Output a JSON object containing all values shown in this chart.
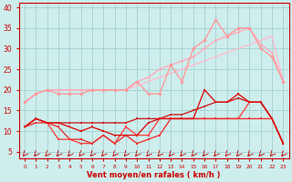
{
  "x": [
    0,
    1,
    2,
    3,
    4,
    5,
    6,
    7,
    8,
    9,
    10,
    11,
    12,
    13,
    14,
    15,
    16,
    17,
    18,
    19,
    20,
    21,
    22,
    23
  ],
  "background_color": "#cdeeed",
  "grid_color": "#aad4d4",
  "lines": [
    {
      "y": [
        17,
        19,
        20,
        20,
        20,
        20,
        20,
        20,
        20,
        20,
        21,
        22,
        23,
        24,
        25,
        26,
        27,
        28,
        29,
        30,
        31,
        32,
        33,
        22
      ],
      "color": "#ffbbcc",
      "linewidth": 1.0,
      "marker": null,
      "markersize": 0,
      "zorder": 1
    },
    {
      "y": [
        17,
        19,
        20,
        20,
        20,
        20,
        20,
        20,
        20,
        20,
        22,
        23,
        25,
        26,
        27,
        28,
        30,
        32,
        33,
        34,
        35,
        31,
        29,
        22
      ],
      "color": "#ffaabb",
      "linewidth": 1.0,
      "marker": "o",
      "markersize": 2.0,
      "zorder": 2
    },
    {
      "y": [
        17,
        19,
        20,
        19,
        19,
        19,
        20,
        20,
        20,
        20,
        22,
        19,
        19,
        26,
        22,
        30,
        32,
        37,
        33,
        35,
        35,
        30,
        28,
        22
      ],
      "color": "#ff9999",
      "linewidth": 1.0,
      "marker": "o",
      "markersize": 2.5,
      "zorder": 3
    },
    {
      "y": [
        11,
        13,
        12,
        12,
        12,
        12,
        12,
        12,
        12,
        12,
        13,
        13,
        13,
        14,
        14,
        15,
        16,
        17,
        17,
        18,
        17,
        17,
        13,
        7
      ],
      "color": "#cc2222",
      "linewidth": 1.0,
      "marker": "s",
      "markersize": 2.0,
      "zorder": 4
    },
    {
      "y": [
        11,
        13,
        12,
        12,
        11,
        10,
        11,
        10,
        9,
        9,
        9,
        12,
        13,
        13,
        13,
        13,
        20,
        17,
        17,
        19,
        17,
        17,
        13,
        7
      ],
      "color": "#dd1111",
      "linewidth": 1.0,
      "marker": "s",
      "markersize": 2.0,
      "zorder": 5
    },
    {
      "y": [
        11,
        12,
        12,
        11,
        8,
        8,
        7,
        9,
        7,
        9,
        7,
        8,
        9,
        13,
        13,
        13,
        13,
        13,
        13,
        13,
        13,
        13,
        13,
        7
      ],
      "color": "#ee3333",
      "linewidth": 1.0,
      "marker": "s",
      "markersize": 2.0,
      "zorder": 4
    },
    {
      "y": [
        11,
        13,
        12,
        8,
        8,
        7,
        7,
        9,
        7,
        11,
        9,
        9,
        13,
        13,
        13,
        13,
        13,
        13,
        13,
        13,
        17,
        17,
        13,
        7
      ],
      "color": "#ff4444",
      "linewidth": 1.0,
      "marker": "s",
      "markersize": 2.0,
      "zorder": 3
    }
  ],
  "xlabel": "Vent moyen/en rafales ( km/h )",
  "yticks": [
    5,
    10,
    15,
    20,
    25,
    30,
    35,
    40
  ],
  "ylim": [
    3.5,
    41
  ],
  "xlim": [
    -0.5,
    23.5
  ],
  "red_color": "#cc0000"
}
